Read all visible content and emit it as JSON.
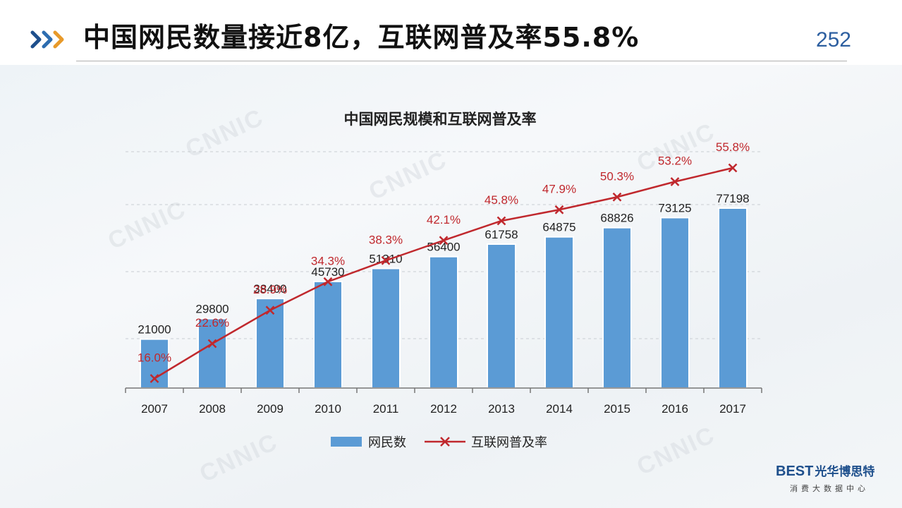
{
  "page": {
    "title": "中国网民数量接近8亿，互联网普及率55.8%",
    "page_number": "252"
  },
  "watermark_text": "CNNIC",
  "logo": {
    "main": "BEST",
    "main_cn": "光华博思特",
    "sub": "消费大数据中心"
  },
  "colors": {
    "bar": "#5b9bd5",
    "line": "#c0282d",
    "title_accent": "#2d5fa0"
  },
  "chart_data": {
    "type": "bar",
    "title": "中国网民规模和互联网普及率",
    "categories": [
      "2007",
      "2008",
      "2009",
      "2010",
      "2011",
      "2012",
      "2013",
      "2014",
      "2015",
      "2016",
      "2017"
    ],
    "series": [
      {
        "name": "网民数",
        "type": "bar",
        "color": "#5b9bd5",
        "values": [
          21000,
          29800,
          38400,
          45730,
          51310,
          56400,
          61758,
          64875,
          68826,
          73125,
          77198
        ],
        "labels": [
          "21000",
          "29800",
          "38400",
          "45730",
          "51310",
          "56400",
          "61758",
          "64875",
          "68826",
          "73125",
          "77198"
        ]
      },
      {
        "name": "互联网普及率",
        "type": "line",
        "marker": "x",
        "color": "#c0282d",
        "values": [
          16.0,
          22.6,
          28.9,
          34.3,
          38.3,
          42.1,
          45.8,
          47.9,
          50.3,
          53.2,
          55.8
        ],
        "labels": [
          "16.0%",
          "22.6%",
          "28.9%",
          "34.3%",
          "38.3%",
          "42.1%",
          "45.8%",
          "47.9%",
          "50.3%",
          "53.2%",
          "55.8%"
        ]
      }
    ],
    "legend_position": "bottom",
    "grid": true
  }
}
